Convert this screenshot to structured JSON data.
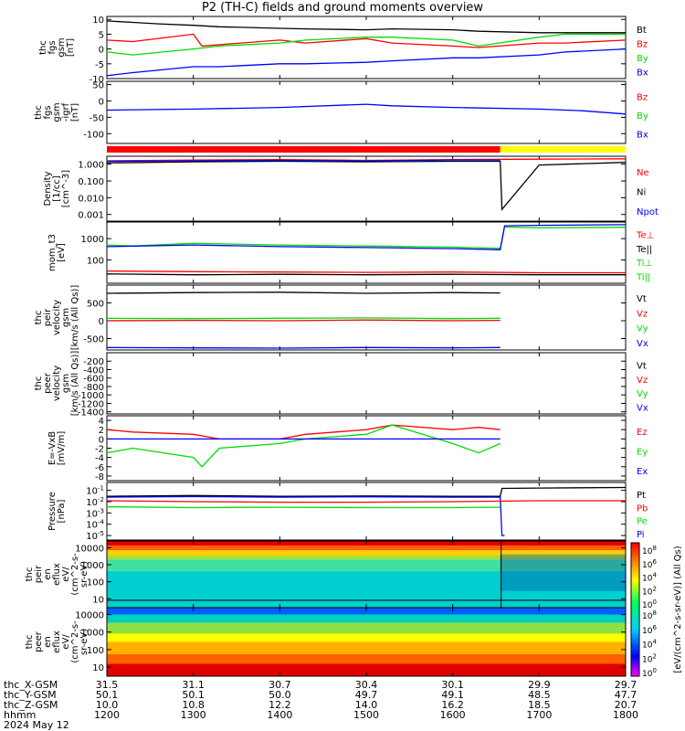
{
  "title": "P2 (TH-C) fields and ground moments overview",
  "colors": {
    "black": "#000000",
    "red": "#ff0000",
    "green": "#00dd00",
    "blue": "#0000ff",
    "yellow": "#ffff00"
  },
  "chart_data": [
    {
      "type": "line",
      "name": "fgs",
      "ylabel": [
        "thc",
        "fgs",
        "gsm",
        "[nT]"
      ],
      "ylim": [
        -10,
        11
      ],
      "log": false,
      "yticks": [
        10,
        5,
        0,
        -5,
        -10
      ],
      "legend": [
        {
          "label": "Bt",
          "color": "#000000"
        },
        {
          "label": "Bz",
          "color": "#ff0000"
        },
        {
          "label": "By",
          "color": "#00dd00"
        },
        {
          "label": "Bx",
          "color": "#0000ff"
        }
      ],
      "series": [
        {
          "color": "#000000",
          "x": [
            1200,
            1230,
            1260,
            1300,
            1330,
            1400,
            1430,
            1500,
            1530,
            1600,
            1630,
            1700,
            1730,
            1800
          ],
          "y": [
            9.5,
            9,
            8.5,
            8,
            7.5,
            7,
            6.8,
            6.5,
            6.8,
            6.5,
            6,
            5.5,
            5.5,
            5.5
          ]
        },
        {
          "color": "#ff0000",
          "x": [
            1200,
            1230,
            1300,
            1310,
            1400,
            1430,
            1500,
            1530,
            1600,
            1630,
            1700,
            1730,
            1800
          ],
          "y": [
            3,
            2.5,
            5,
            1,
            3,
            2,
            3.5,
            2,
            1,
            0.5,
            2,
            2,
            3
          ]
        },
        {
          "color": "#00dd00",
          "x": [
            1200,
            1230,
            1300,
            1330,
            1400,
            1430,
            1500,
            1530,
            1600,
            1630,
            1700,
            1730,
            1800
          ],
          "y": [
            -1,
            -2,
            0,
            1,
            2,
            3,
            4,
            4,
            3,
            1,
            4,
            5,
            5
          ]
        },
        {
          "color": "#0000ff",
          "x": [
            1200,
            1230,
            1300,
            1330,
            1400,
            1430,
            1500,
            1530,
            1600,
            1630,
            1700,
            1730,
            1800
          ],
          "y": [
            -9,
            -8,
            -6,
            -6,
            -5,
            -5,
            -4.5,
            -4,
            -3,
            -3,
            -2,
            -1,
            0
          ]
        }
      ]
    },
    {
      "type": "line",
      "name": "fgs-dif",
      "ylabel": [
        "thc",
        "fgs",
        "gsm",
        "-igrf",
        "[nT]"
      ],
      "ylim": [
        -130,
        60
      ],
      "log": false,
      "yticks": [
        50,
        0,
        -50,
        -100
      ],
      "legend": [
        {
          "label": "Bz",
          "color": "#ff0000"
        },
        {
          "label": "By",
          "color": "#00dd00"
        },
        {
          "label": "Bx",
          "color": "#0000ff"
        }
      ],
      "series": [
        {
          "color": "#0000ff",
          "x": [
            1200,
            1300,
            1400,
            1500,
            1530,
            1600,
            1700,
            1750,
            1800
          ],
          "y": [
            -28,
            -25,
            -20,
            -10,
            -15,
            -20,
            -25,
            -30,
            -40
          ]
        }
      ]
    },
    {
      "type": "line",
      "name": "density",
      "ylabel": [
        "Density",
        "[1/cc]",
        "[cm^-3]"
      ],
      "ylim": [
        0.0004,
        3
      ],
      "log": true,
      "yticks": [
        1,
        0.1,
        0.01,
        0.001
      ],
      "ytick_labels": [
        "1.000",
        "0.100",
        "0.010",
        "0.001"
      ],
      "legend": [
        {
          "label": "Ne",
          "color": "#ff0000"
        },
        {
          "label": "Ni",
          "color": "#000000"
        },
        {
          "label": "Npot",
          "color": "#0000ff"
        }
      ],
      "series": [
        {
          "color": "#000000",
          "x": [
            1200,
            1300,
            1400,
            1500,
            1600,
            1655,
            1657,
            1700,
            1800
          ],
          "y": [
            1.2,
            1.4,
            1.5,
            1.4,
            1.5,
            1.5,
            0.002,
            0.9,
            1.3
          ]
        },
        {
          "color": "#ff0000",
          "x": [
            1200,
            1300,
            1400,
            1500,
            1600,
            1700,
            1800
          ],
          "y": [
            1.6,
            1.8,
            1.9,
            1.7,
            1.9,
            2,
            2.1
          ]
        },
        {
          "color": "#0000ff",
          "x": [
            1200,
            1300,
            1400,
            1500,
            1600,
            1655
          ],
          "y": [
            1.5,
            1.6,
            1.7,
            1.6,
            1.8,
            1.8
          ]
        }
      ]
    },
    {
      "type": "line",
      "name": "temperature",
      "ylabel": [
        "mom_t3",
        "[eV]"
      ],
      "ylim": [
        8,
        6000
      ],
      "log": true,
      "yticks": [
        1000,
        100
      ],
      "legend": [
        {
          "label": "Te⊥",
          "color": "#ff0000"
        },
        {
          "label": "Te||",
          "color": "#000000"
        },
        {
          "label": "Ti⊥",
          "color": "#00dd00"
        },
        {
          "label": "Ti||",
          "color": "#00dd00"
        }
      ],
      "series": [
        {
          "color": "#00dd00",
          "x": [
            1200,
            1230,
            1300,
            1400,
            1500,
            1600,
            1655,
            1660,
            1700,
            1800
          ],
          "y": [
            500,
            450,
            600,
            500,
            450,
            400,
            350,
            3500,
            3200,
            3400
          ]
        },
        {
          "color": "#0000ff",
          "x": [
            1200,
            1300,
            1400,
            1500,
            1600,
            1655,
            1660,
            1700,
            1800
          ],
          "y": [
            420,
            500,
            420,
            380,
            340,
            300,
            4000,
            4200,
            4500
          ]
        },
        {
          "color": "#ff0000",
          "x": [
            1200,
            1300,
            1400,
            1500,
            1600,
            1700,
            1800
          ],
          "y": [
            30,
            28,
            27,
            26,
            27,
            25,
            25
          ]
        },
        {
          "color": "#000000",
          "x": [
            1200,
            1300,
            1400,
            1500,
            1600,
            1700,
            1800
          ],
          "y": [
            22,
            20,
            21,
            20,
            21,
            20,
            20
          ]
        }
      ]
    },
    {
      "type": "line",
      "name": "peir-velocity",
      "ylabel": [
        "thc",
        "peir",
        "velocity",
        "gsm",
        "[km/s (All Qs)]"
      ],
      "ylim": [
        -820,
        1000
      ],
      "log": false,
      "yticks": [
        500,
        0,
        -500
      ],
      "legend": [
        {
          "label": "Vt",
          "color": "#000000"
        },
        {
          "label": "Vz",
          "color": "#ff0000"
        },
        {
          "label": "Vy",
          "color": "#00dd00"
        },
        {
          "label": "Vx",
          "color": "#0000ff"
        }
      ],
      "series": [
        {
          "color": "#000000",
          "x": [
            1200,
            1300,
            1400,
            1500,
            1600,
            1655
          ],
          "y": [
            770,
            790,
            800,
            770,
            790,
            780
          ]
        },
        {
          "color": "#00dd00",
          "x": [
            1200,
            1300,
            1400,
            1500,
            1600,
            1655
          ],
          "y": [
            70,
            60,
            70,
            80,
            60,
            70
          ]
        },
        {
          "color": "#ff0000",
          "x": [
            1200,
            1300,
            1400,
            1500,
            1600,
            1655
          ],
          "y": [
            0,
            10,
            0,
            20,
            0,
            10
          ]
        },
        {
          "color": "#0000ff",
          "x": [
            1200,
            1300,
            1400,
            1500,
            1600,
            1655
          ],
          "y": [
            -750,
            -760,
            -770,
            -750,
            -760,
            -750
          ]
        }
      ]
    },
    {
      "type": "line",
      "name": "peer-velocity",
      "ylabel": [
        "thc",
        "peer",
        "velocity",
        "gsm",
        "[km/s (All Qs)]"
      ],
      "ylim": [
        -1450,
        0
      ],
      "log": false,
      "yticks": [
        -200,
        -400,
        -600,
        -800,
        -1000,
        -1200,
        -1400
      ],
      "legend": [
        {
          "label": "Vt",
          "color": "#000000"
        },
        {
          "label": "Vz",
          "color": "#ff0000"
        },
        {
          "label": "Vy",
          "color": "#00dd00"
        },
        {
          "label": "Vx",
          "color": "#0000ff"
        }
      ],
      "series": []
    },
    {
      "type": "line",
      "name": "efield",
      "ylabel": [
        "E=-VxB",
        "[mV/m]"
      ],
      "ylim": [
        -9,
        5
      ],
      "log": false,
      "yticks": [
        4,
        2,
        0,
        -2,
        -4,
        -6,
        -8
      ],
      "legend": [
        {
          "label": "Ez",
          "color": "#ff0000"
        },
        {
          "label": "Ey",
          "color": "#00dd00"
        },
        {
          "label": "Ex",
          "color": "#0000ff"
        }
      ],
      "series": [
        {
          "color": "#ff0000",
          "x": [
            1200,
            1230,
            1300,
            1330,
            1400,
            1430,
            1500,
            1530,
            1600,
            1630,
            1655
          ],
          "y": [
            2,
            1.5,
            1,
            0,
            0,
            1,
            2,
            3,
            2,
            2.5,
            2
          ]
        },
        {
          "color": "#00dd00",
          "x": [
            1200,
            1230,
            1300,
            1310,
            1330,
            1400,
            1430,
            1500,
            1530,
            1600,
            1630,
            1655
          ],
          "y": [
            -3,
            -2,
            -4,
            -6,
            -2,
            -1,
            0,
            1,
            3,
            -1,
            -3,
            -1
          ]
        },
        {
          "color": "#0000ff",
          "x": [
            1200,
            1300,
            1400,
            1500,
            1600,
            1655
          ],
          "y": [
            0,
            0,
            0,
            0,
            0,
            0
          ]
        }
      ]
    },
    {
      "type": "line",
      "name": "pressure",
      "ylabel": [
        "Pressure",
        "[nPa]"
      ],
      "ylim": [
        4e-06,
        0.5
      ],
      "log": true,
      "yticks": [
        0.1,
        0.01,
        0.001,
        0.0001,
        1e-05
      ],
      "ytick_labels": [
        "10^-1",
        "10^-2",
        "10^-3",
        "10^-4",
        "10^-5"
      ],
      "legend": [
        {
          "label": "Pt",
          "color": "#000000"
        },
        {
          "label": "Pb",
          "color": "#ff0000"
        },
        {
          "label": "Pe",
          "color": "#00dd00"
        },
        {
          "label": "Pi",
          "color": "#0000ff"
        }
      ],
      "series": [
        {
          "color": "#000000",
          "x": [
            1200,
            1300,
            1400,
            1500,
            1600,
            1655,
            1657,
            1700,
            1800
          ],
          "y": [
            0.03,
            0.035,
            0.03,
            0.032,
            0.03,
            0.03,
            0.15,
            0.16,
            0.18
          ]
        },
        {
          "color": "#0000ff",
          "x": [
            1200,
            1300,
            1400,
            1500,
            1600,
            1655,
            1657,
            1660
          ],
          "y": [
            0.025,
            0.028,
            0.025,
            0.027,
            0.025,
            0.025,
            1e-05,
            1e-05
          ]
        },
        {
          "color": "#ff0000",
          "x": [
            1200,
            1300,
            1400,
            1500,
            1600,
            1700,
            1800
          ],
          "y": [
            0.012,
            0.01,
            0.009,
            0.009,
            0.01,
            0.012,
            0.012
          ]
        },
        {
          "color": "#00dd00",
          "x": [
            1200,
            1300,
            1400,
            1500,
            1600,
            1655
          ],
          "y": [
            0.0035,
            0.003,
            0.0032,
            0.003,
            0.003,
            0.0032
          ]
        }
      ]
    },
    {
      "type": "heatmap",
      "name": "peir-en-eflux",
      "ylabel": [
        "thc",
        "peir",
        "en",
        "eflux",
        "eV/",
        "(cm^2-s-",
        "sr-eV)"
      ],
      "ylim": [
        3,
        25000
      ],
      "log": true,
      "yticks": [
        10000,
        1000,
        100,
        10
      ],
      "ytick_labels": [
        "10000",
        "1000",
        "100",
        "10"
      ]
    },
    {
      "type": "heatmap",
      "name": "peer-en-eflux",
      "ylabel": [
        "thc",
        "peer",
        "en",
        "eflux",
        "eV/",
        "(cm^2-s-",
        "sr-eV)"
      ],
      "ylim": [
        3,
        25000
      ],
      "log": true,
      "yticks": [
        10000,
        1000,
        100,
        10
      ],
      "ytick_labels": [
        "10000",
        "1000",
        "100",
        "10"
      ]
    }
  ],
  "colorbar": {
    "peir_ticks": [
      "10^8",
      "10^6",
      "10^4",
      "10^2",
      "10^0"
    ],
    "peer_ticks": [
      "10^8",
      "10^6",
      "10^4",
      "10^2",
      "10^0"
    ],
    "label": "[eV/(cm^2-s-sr-eV)] (All Qs)"
  },
  "xaxis": {
    "range": [
      1200,
      1800
    ],
    "ticks": [
      1200,
      1300,
      1400,
      1500,
      1600,
      1700,
      1800
    ]
  },
  "footer": {
    "labels": [
      "thc_X-GSM",
      "thc_Y-GSM",
      "thc_Z-GSM",
      "hhmm",
      "2024 May 12"
    ],
    "rows": [
      [
        "31.5",
        "31.1",
        "30.7",
        "30.4",
        "30.1",
        "29.9",
        "29.7"
      ],
      [
        "50.1",
        "50.1",
        "50.0",
        "49.7",
        "49.1",
        "48.5",
        "47.7"
      ],
      [
        "10.0",
        "10.8",
        "12.2",
        "14.0",
        "16.2",
        "18.5",
        "20.7"
      ],
      [
        "1200",
        "1300",
        "1400",
        "1500",
        "1600",
        "1700",
        "1800"
      ]
    ]
  }
}
